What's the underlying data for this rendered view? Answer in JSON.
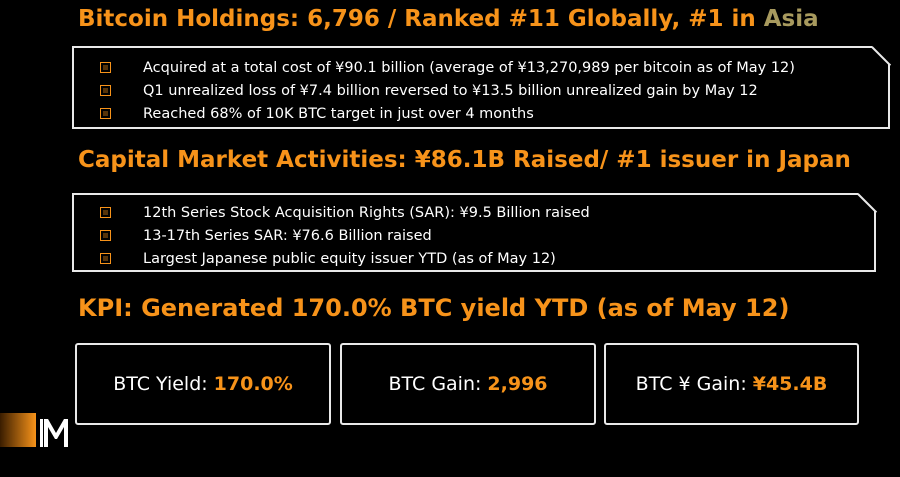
{
  "section1": {
    "title_main": "Bitcoin Holdings: 6,796 / Ranked #11 Globally, #1 in ",
    "title_accent": "Asia",
    "bullets": [
      "Acquired at a total cost of ¥90.1 billion (average of ¥13,270,989 per bitcoin as of May 12)",
      "Q1 unrealized loss of ¥7.4 billion reversed to ¥13.5 billion unrealized gain by May 12",
      "Reached 68% of 10K BTC target in just over 4 months"
    ]
  },
  "section2": {
    "title": "Capital Market Activities: ¥86.1B Raised/ #1 issuer in Japan",
    "bullets": [
      "12th Series Stock Acquisition Rights (SAR): ¥9.5 Billion raised",
      "13-17th Series SAR: ¥76.6 Billion raised",
      "Largest Japanese public equity issuer YTD (as of May 12)"
    ]
  },
  "section3": {
    "title": "KPI: Generated 170.0% BTC yield YTD (as of May 12)",
    "kpis": [
      {
        "label": "BTC Yield:",
        "value": "170.0%"
      },
      {
        "label": "BTC Gain:",
        "value": "2,996"
      },
      {
        "label": "BTC ¥ Gain:",
        "value": "¥45.4B"
      }
    ]
  },
  "colors": {
    "accent": "#f7931a",
    "accent_muted": "#a89a5e",
    "background": "#000000",
    "border": "#e9e9e9"
  },
  "logo": {
    "icon": "metaplanet-m-logo"
  }
}
